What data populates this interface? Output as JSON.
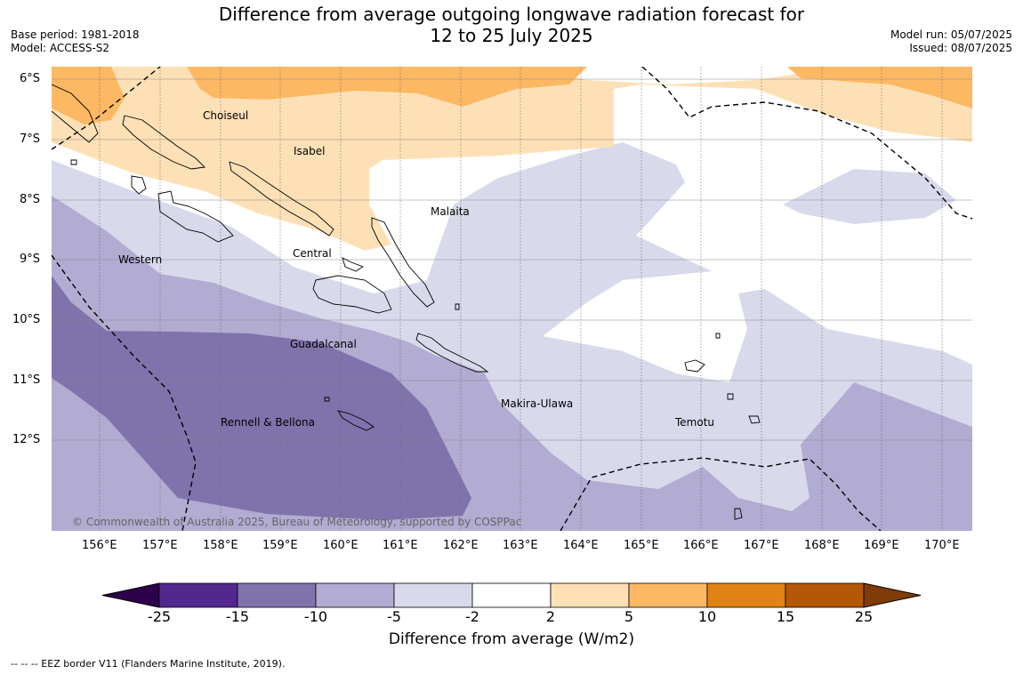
{
  "header": {
    "title_line1": "Difference from average outgoing longwave radiation forecast for",
    "title_line2": "12 to 25 July 2025",
    "base_period": "Base period: 1981-2018",
    "model": "Model: ACCESS-S2",
    "model_run": "Model run: 05/07/2025",
    "issued": "Issued: 08/07/2025"
  },
  "map": {
    "lat_labels": [
      "6°S",
      "7°S",
      "8°S",
      "9°S",
      "10°S",
      "11°S",
      "12°S"
    ],
    "lon_labels": [
      "156°E",
      "157°E",
      "158°E",
      "159°E",
      "160°E",
      "161°E",
      "162°E",
      "163°E",
      "164°E",
      "165°E",
      "166°E",
      "167°E",
      "168°E",
      "169°E",
      "170°E"
    ],
    "provinces": [
      "Choiseul",
      "Isabel",
      "Malaita",
      "Western",
      "Central",
      "Guadalcanal",
      "Makira-Ulawa",
      "Temotu",
      "Rennell & Bellona"
    ],
    "copyright": "© Commonwealth of Australia 2025, Bureau of Meteorology, supported by COSPPac"
  },
  "colorbar": {
    "ticks": [
      "-25",
      "-15",
      "-10",
      "-5",
      "-2",
      "2",
      "5",
      "10",
      "15",
      "25"
    ],
    "colors": [
      "#54278f",
      "#8073ac",
      "#b2abd2",
      "#d8daeb",
      "#ffffff",
      "#fee0b6",
      "#fdb863",
      "#e08214",
      "#b35806"
    ],
    "under_color": "#2d004b",
    "over_color": "#7f3b08",
    "title": "Difference from average (W/m2)"
  },
  "footnote": "-- -- -- EEZ border V11 (Flanders Marine Institute, 2019)."
}
